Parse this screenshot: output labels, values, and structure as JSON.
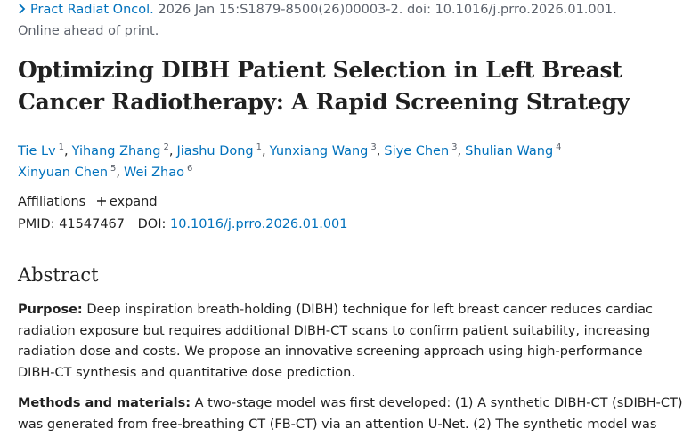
{
  "citation": {
    "journal": "Pract Radiat Oncol.",
    "details": "2026 Jan 15:S1879-8500(26)00003-2. doi: 10.1016/j.prro.2026.01.001.",
    "status": "Online ahead of print."
  },
  "title": {
    "lines": [
      "Optimizing DIBH Patient Selection in Left Breast",
      "Cancer Radiotherapy: A Rapid Screening Strategy"
    ]
  },
  "authors": [
    {
      "name": "Tie Lv",
      "aff": "1"
    },
    {
      "name": "Yihang Zhang",
      "aff": "2"
    },
    {
      "name": "Jiashu Dong",
      "aff": "1"
    },
    {
      "name": "Yunxiang Wang",
      "aff": "3"
    },
    {
      "name": "Siye Chen",
      "aff": "3"
    },
    {
      "name": "Shulian Wang",
      "aff": "4"
    },
    {
      "name": "Xinyuan Chen",
      "aff": "5"
    },
    {
      "name": "Wei Zhao",
      "aff": "6"
    }
  ],
  "affiliations": {
    "label": "Affiliations",
    "toggle": "expand"
  },
  "ids": {
    "pmid_label": "PMID:",
    "pmid": "41547467",
    "doi_label": "DOI:",
    "doi": "10.1016/j.prro.2026.01.001"
  },
  "abstract": {
    "heading": "Abstract",
    "sections": [
      {
        "label": "Purpose:",
        "lines": [
          "Deep inspiration breath-holding (DIBH) technique for left breast cancer reduces cardiac",
          "radiation exposure but requires additional DIBH-CT scans to confirm patient suitability, increasing",
          "radiation dose and costs. We propose an innovative screening approach using high-performance",
          "DIBH-CT synthesis and quantitative dose prediction."
        ]
      },
      {
        "label": "Methods and materials:",
        "lines": [
          "A two-stage model was first developed: (1) A synthetic DIBH-CT (sDIBH-CT)",
          "was generated from free-breathing CT (FB-CT) via an attention U-Net. (2) The synthetic model was"
        ]
      }
    ]
  }
}
